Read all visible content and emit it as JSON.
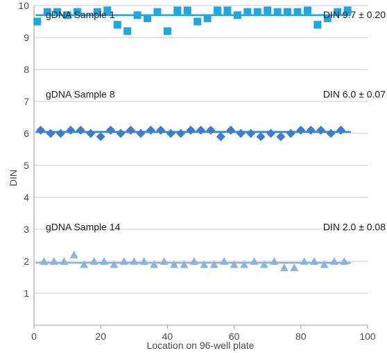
{
  "chart_data": {
    "type": "scatter",
    "xlabel": "Location on 96-well plate",
    "ylabel": "DIN",
    "xlim": [
      0,
      100
    ],
    "ylim": [
      0,
      10
    ],
    "xticks": [
      0,
      20,
      40,
      60,
      80,
      100
    ],
    "yticks": [
      1,
      2,
      3,
      4,
      5,
      6,
      7,
      8,
      9,
      10
    ],
    "grid": "horizontal",
    "series": [
      {
        "name": "gDNA Sample 1",
        "annotation": "DIN 9.7 ± 0.20",
        "marker": "square",
        "color": "#22a6dc",
        "mean": 9.7,
        "x": [
          1,
          4,
          7,
          10,
          13,
          19,
          22,
          25,
          28,
          31,
          34,
          37,
          40,
          43,
          46,
          49,
          52,
          55,
          58,
          61,
          64,
          67,
          70,
          73,
          76,
          79,
          82,
          85,
          88,
          91,
          94
        ],
        "y": [
          9.5,
          9.8,
          9.8,
          9.7,
          9.8,
          9.8,
          9.85,
          9.4,
          9.2,
          9.7,
          9.6,
          9.8,
          9.2,
          9.85,
          9.85,
          9.5,
          9.6,
          9.85,
          9.85,
          9.7,
          9.8,
          9.8,
          9.85,
          9.8,
          9.8,
          9.8,
          9.85,
          9.4,
          9.6,
          9.8,
          9.85
        ]
      },
      {
        "name": "gDNA Sample 8",
        "annotation": "DIN 6.0 ± 0.07",
        "marker": "diamond",
        "color": "#3c7fc8",
        "mean": 6.05,
        "x": [
          2,
          5,
          8,
          11,
          14,
          17,
          20,
          23,
          26,
          29,
          32,
          35,
          38,
          41,
          44,
          47,
          50,
          53,
          56,
          59,
          62,
          65,
          68,
          71,
          74,
          77,
          80,
          83,
          86,
          89,
          92
        ],
        "y": [
          6.1,
          6.0,
          6.0,
          6.1,
          6.1,
          6.0,
          5.9,
          6.1,
          6.0,
          6.1,
          6.0,
          6.1,
          6.1,
          6.0,
          6.0,
          6.1,
          6.1,
          6.1,
          5.9,
          6.1,
          6.0,
          6.0,
          5.9,
          6.0,
          5.9,
          6.0,
          6.1,
          6.1,
          6.1,
          6.0,
          6.1
        ]
      },
      {
        "name": "gDNA Sample 14",
        "annotation": "DIN 2.0 ± 0.08",
        "marker": "triangle",
        "color": "#8ab4df",
        "mean": 1.95,
        "x": [
          3,
          6,
          9,
          12,
          15,
          18,
          21,
          24,
          27,
          30,
          33,
          36,
          39,
          42,
          45,
          48,
          51,
          54,
          57,
          60,
          63,
          66,
          69,
          72,
          75,
          78,
          81,
          84,
          87,
          90,
          93
        ],
        "y": [
          2.0,
          2.0,
          2.0,
          2.2,
          1.9,
          2.0,
          2.0,
          1.9,
          2.0,
          2.0,
          2.0,
          1.9,
          2.0,
          1.9,
          1.9,
          2.0,
          1.9,
          1.9,
          2.0,
          1.9,
          1.9,
          2.0,
          1.9,
          2.0,
          1.8,
          1.8,
          2.0,
          2.0,
          1.9,
          2.0,
          2.0
        ]
      }
    ]
  }
}
